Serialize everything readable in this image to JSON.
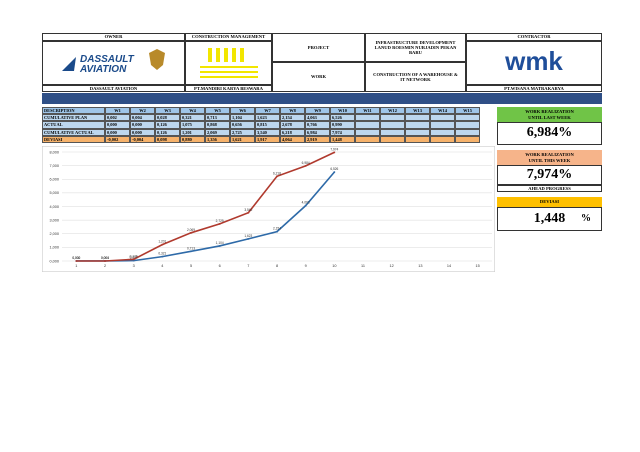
{
  "header": {
    "owner_label": "OWNER",
    "cm_label": "CONSTRUCTION MANAGEMENT",
    "project_label": "PROJECT",
    "project": "INFRASTRUCTURE DEVELOPMENT LANUD ROESMIN NURJADIN PEKAN BARU",
    "contractor_label": "CONTRACTOR",
    "work_label": "WORK",
    "work": "CONSTRUCTION OF A WAREHOUSE & IT NETWORK",
    "owner": "DASSAULT AVIATION",
    "cm": "PT.MANDIRI KARYA BESWARA",
    "contractor": "PT.WISANA MATRAKARYA",
    "owner_logo": [
      "DASSAULT",
      "AVIATION"
    ],
    "contractor_logo": "wmk"
  },
  "table": {
    "columns": [
      "DESCRIPTION",
      "W1",
      "W2",
      "W3",
      "W4",
      "W5",
      "W6",
      "W7",
      "W8",
      "W9",
      "W10",
      "W11",
      "W12",
      "W13",
      "W14",
      "W15"
    ],
    "rows": [
      [
        "CUMULATIVE PLAN",
        "0,002",
        "0,004",
        "0,028",
        "0,321",
        "0,713",
        "1,104",
        "1,623",
        "2,154",
        "4,063",
        "6,526"
      ],
      [
        "ACTUAL",
        "0,000",
        "0,000",
        "0,126",
        "1,075",
        "0,868",
        "0,656",
        "0,815",
        "2,678",
        "0,766",
        "0,990"
      ],
      [
        "CUMULATIVE ACTUAL",
        "0,000",
        "0,000",
        "0,126",
        "1,201",
        "2,069",
        "2,725",
        "3,540",
        "6,218",
        "6,984",
        "7,974"
      ],
      [
        "DEVIASI",
        "-0,002",
        "-0,004",
        "0,098",
        "0,880",
        "1,356",
        "1,621",
        "1,917",
        "4,064",
        "2,919",
        "1,448"
      ]
    ]
  },
  "summary": {
    "last_week_title": "WORK REALIZATION",
    "last_week_sub": "UNTIL LAST WEEK",
    "last_week_value": "6,984%",
    "this_week_title": "WORK REALIZATION",
    "this_week_sub": "UNTIL THIS WEEK",
    "this_week_value": "7,974%",
    "status": "AHEAD PROGRESS",
    "deviasi_title": "DEVIASI",
    "deviasi_value": "1,448",
    "deviasi_unit": "%"
  },
  "chart": {
    "type": "line",
    "categories": [
      "1",
      "2",
      "3",
      "4",
      "5",
      "6",
      "7",
      "8",
      "9",
      "10",
      "11",
      "12",
      "13",
      "14",
      "15"
    ],
    "ylim": [
      0,
      8
    ],
    "yticks": [
      {
        "value": 0,
        "label": "0,000"
      },
      {
        "value": 1,
        "label": "1,000"
      },
      {
        "value": 2,
        "label": "2,000"
      },
      {
        "value": 3,
        "label": "3,000"
      },
      {
        "value": 4,
        "label": "4,000"
      },
      {
        "value": 5,
        "label": "5,000"
      },
      {
        "value": 6,
        "label": "6,000"
      },
      {
        "value": 7,
        "label": "7,000"
      },
      {
        "value": 8,
        "label": "8,000"
      }
    ],
    "grid": true,
    "series": [
      {
        "color": "#2e6aa8",
        "values": [
          0.002,
          0.004,
          0.028,
          0.321,
          0.713,
          1.104,
          1.623,
          2.154,
          4.063,
          6.526,
          null,
          null,
          null,
          null,
          null
        ],
        "value_labels": [
          "0,002",
          "0,004",
          "0,028",
          "0,321",
          "0,713",
          "1,104",
          "1,623",
          "2,154",
          "4,063",
          "6,526",
          null,
          null,
          null,
          null,
          null
        ]
      },
      {
        "color": "#b03a2e",
        "values": [
          0,
          0,
          0.126,
          1.201,
          2.069,
          2.725,
          3.54,
          6.218,
          6.984,
          7.974,
          null,
          null,
          null,
          null,
          null
        ],
        "value_labels": [
          "0,000",
          "0,000",
          "0,126",
          "1,201",
          "2,069",
          "2,725",
          "3,540",
          "6,218",
          "6,984",
          "7,974",
          null,
          null,
          null,
          null,
          null
        ]
      }
    ]
  }
}
